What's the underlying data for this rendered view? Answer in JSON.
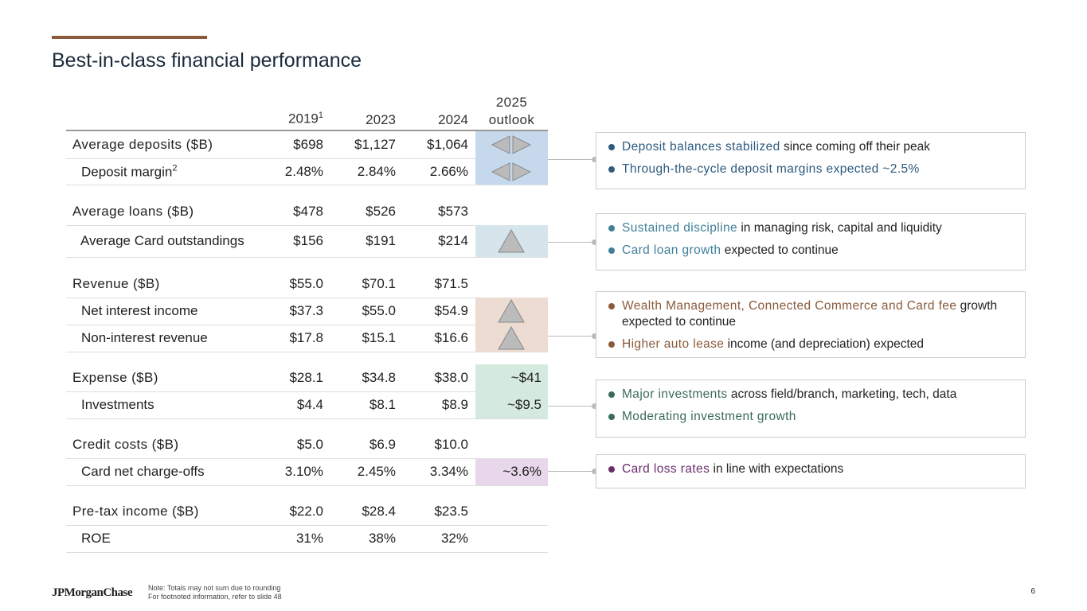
{
  "title": "Best-in-class financial performance",
  "columns": {
    "c2019": "2019",
    "c2019_sup": "1",
    "c2023": "2023",
    "c2024": "2024",
    "outlook_l1": "2025",
    "outlook_l2": "outlook"
  },
  "rows": [
    {
      "label": "Average deposits ($B)",
      "v": [
        "$698",
        "$1,127",
        "$1,064"
      ],
      "outlook": "",
      "outlook_icon": "left-right-arrows-icon"
    },
    {
      "label": "Deposit margin",
      "sup": "2",
      "v": [
        "2.48%",
        "2.84%",
        "2.66%"
      ],
      "outlook": "",
      "outlook_icon": "left-right-arrows-icon"
    },
    {
      "label": "Average loans ($B)",
      "v": [
        "$478",
        "$526",
        "$573"
      ]
    },
    {
      "label": "Average Card outstandings",
      "v": [
        "$156",
        "$191",
        "$214"
      ],
      "outlook_icon": "up-triangle-icon"
    },
    {
      "label": "Revenue ($B)",
      "v": [
        "$55.0",
        "$70.1",
        "$71.5"
      ]
    },
    {
      "label": "Net interest income",
      "v": [
        "$37.3",
        "$55.0",
        "$54.9"
      ],
      "outlook_icon": "up-triangle-icon"
    },
    {
      "label": "Non-interest revenue",
      "v": [
        "$17.8",
        "$15.1",
        "$16.6"
      ],
      "outlook_icon": "up-triangle-icon"
    },
    {
      "label": "Expense ($B)",
      "v": [
        "$28.1",
        "$34.8",
        "$38.0"
      ],
      "outlook": "~$41"
    },
    {
      "label": "Investments",
      "v": [
        "$4.4",
        "$8.1",
        "$8.9"
      ],
      "outlook": "~$9.5"
    },
    {
      "label": "Credit costs ($B)",
      "v": [
        "$5.0",
        "$6.9",
        "$10.0"
      ]
    },
    {
      "label": "Card net charge-offs",
      "v": [
        "3.10%",
        "2.45%",
        "3.34%"
      ],
      "outlook": "~3.6%"
    },
    {
      "label": "Pre-tax income ($B)",
      "v": [
        "$22.0",
        "$28.4",
        "$23.5"
      ]
    },
    {
      "label": "ROE",
      "v": [
        "31%",
        "38%",
        "32%"
      ]
    }
  ],
  "colors": {
    "deposits": "#c6d9ec",
    "card": "#d6e4ec",
    "revenue": "#eddcd1",
    "expense": "#d4eadf",
    "credit": "#e8d6ea",
    "blue": "#2d5a7e",
    "teal": "#3f7f98",
    "brown": "#8a5a3c",
    "green": "#3b6b56",
    "purple": "#6a2d6a"
  },
  "callouts": [
    {
      "items": [
        {
          "hl": "Deposit balances stabilized",
          "rest": " since coming off their peak"
        },
        {
          "hl": "Through-the-cycle deposit margins expected ~2.5%",
          "rest": ""
        }
      ]
    },
    {
      "items": [
        {
          "hl": "Sustained discipline",
          "rest": " in managing risk, capital and liquidity"
        },
        {
          "hl": "Card loan growth",
          "rest": " expected to continue"
        }
      ]
    },
    {
      "items": [
        {
          "hl": "Wealth Management, Connected Commerce and Card fee",
          "rest": " growth expected to continue"
        },
        {
          "hl": "Higher auto lease",
          "rest": " income (and depreciation) expected"
        }
      ]
    },
    {
      "items": [
        {
          "hl": "Major investments",
          "rest": " across field/branch, marketing, tech, data"
        },
        {
          "hl": "Moderating investment growth",
          "rest": ""
        }
      ]
    },
    {
      "items": [
        {
          "hl": "Card loss rates",
          "rest": " in line with expectations"
        }
      ]
    }
  ],
  "footer": {
    "logo": "JPMorganChase",
    "note1": "Note: Totals may not sum due to rounding",
    "note2": "For footnoted information, refer to slide 48",
    "page": "6"
  }
}
